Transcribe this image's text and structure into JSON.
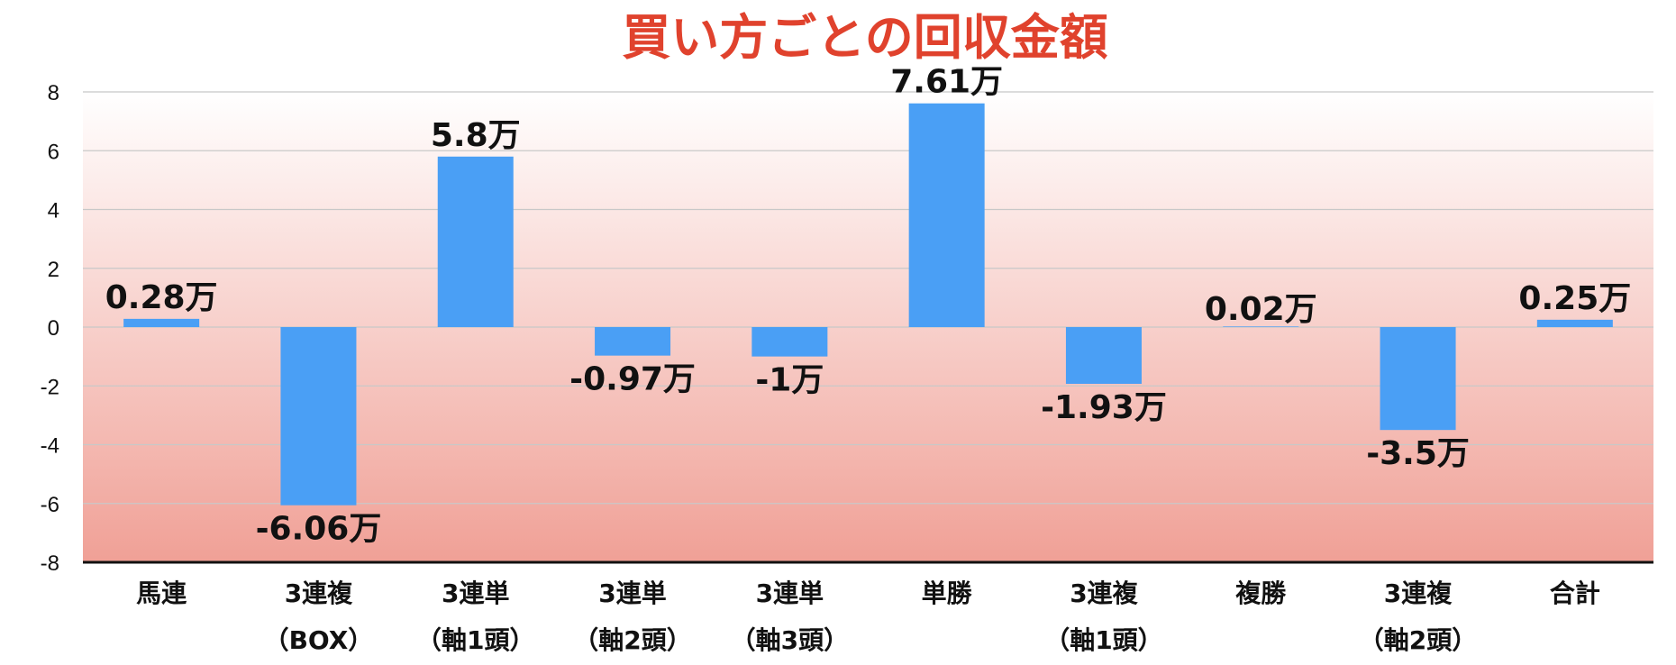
{
  "chart_data": {
    "type": "bar",
    "title": "買い方ごとの回収金額",
    "categories": [
      [
        "馬連"
      ],
      [
        "3連複",
        "（BOX）"
      ],
      [
        "3連単",
        "（軸1頭）"
      ],
      [
        "3連単",
        "（軸2頭）"
      ],
      [
        "3連単",
        "（軸3頭）"
      ],
      [
        "単勝"
      ],
      [
        "3連複",
        "（軸1頭）"
      ],
      [
        "複勝"
      ],
      [
        "3連複",
        "（軸2頭）"
      ],
      [
        "合計"
      ]
    ],
    "values": [
      0.28,
      -6.06,
      5.8,
      -0.97,
      -1,
      7.61,
      -1.93,
      0.02,
      -3.5,
      0.25
    ],
    "data_labels": [
      "0.28万",
      "-6.06万",
      "5.8万",
      "-0.97万",
      "-1万",
      "7.61万",
      "-1.93万",
      "0.02万",
      "-3.5万",
      "0.25万"
    ],
    "yticks": [
      "8",
      "6",
      "4",
      "2",
      "0",
      "-2",
      "-4",
      "-6",
      "-8"
    ],
    "ylim": [
      -8,
      8
    ],
    "grid": true,
    "legend": "none",
    "colors": {
      "bar": "#4a9ff5",
      "title": "#e0422d",
      "gradient_top": "#ffffff",
      "gradient_bottom": "#f0a096",
      "grid": "#c8c8c8",
      "axis": "#111111"
    }
  }
}
